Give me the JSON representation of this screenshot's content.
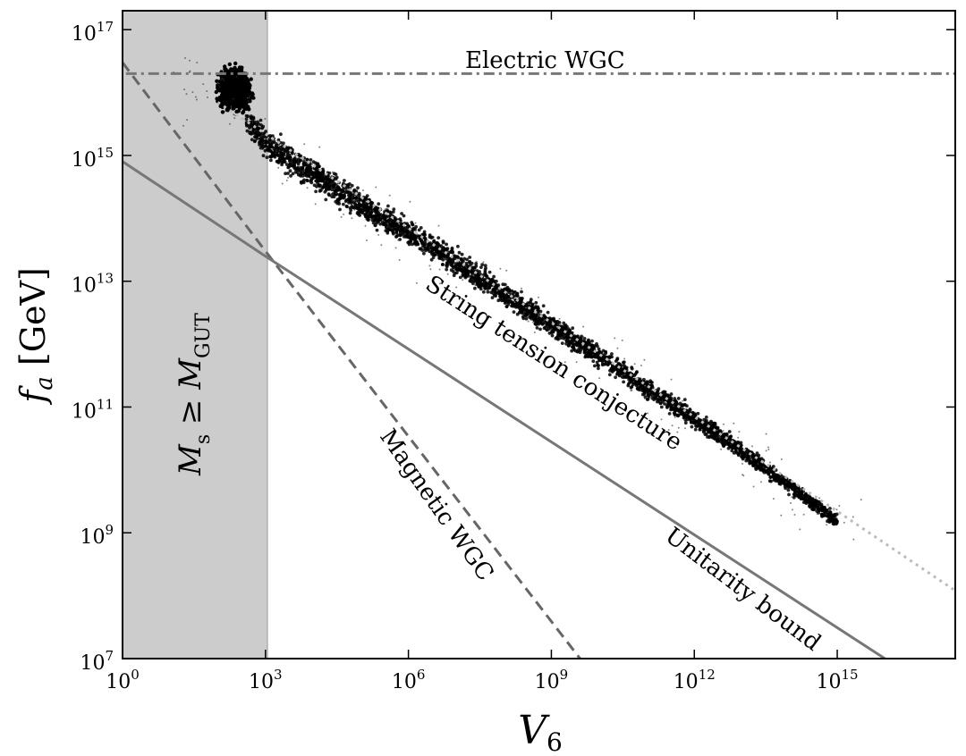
{
  "chart_data": {
    "type": "scatter",
    "title": "",
    "xlabel": {
      "main": "V",
      "sub": "6"
    },
    "ylabel": {
      "main": "f",
      "sub": "a",
      "unit": "[GeV]"
    },
    "x_scale": "log",
    "y_scale": "log",
    "xlim": [
      1,
      3e+17
    ],
    "ylim": [
      10000000.0,
      2e+17
    ],
    "x_ticks": [
      {
        "base": "10",
        "exp": "0",
        "value": 1
      },
      {
        "base": "10",
        "exp": "3",
        "value": 1000
      },
      {
        "base": "10",
        "exp": "6",
        "value": 1000000
      },
      {
        "base": "10",
        "exp": "9",
        "value": 1000000000
      },
      {
        "base": "10",
        "exp": "12",
        "value": 1000000000000
      },
      {
        "base": "10",
        "exp": "15",
        "value": 1000000000000000
      }
    ],
    "y_ticks": [
      {
        "base": "10",
        "exp": "7",
        "value": 10000000
      },
      {
        "base": "10",
        "exp": "9",
        "value": 1000000000
      },
      {
        "base": "10",
        "exp": "11",
        "value": 100000000000
      },
      {
        "base": "10",
        "exp": "13",
        "value": 10000000000000
      },
      {
        "base": "10",
        "exp": "15",
        "value": 1000000000000000
      },
      {
        "base": "10",
        "exp": "17",
        "value": 100000000000000000
      }
    ],
    "shaded_region": {
      "x_range": [
        1,
        1100
      ],
      "label": {
        "M": "M",
        "Msub": "s",
        "op": "≥",
        "G": "M",
        "Gsub": "GUT"
      },
      "color": "#cccccc"
    },
    "lines": [
      {
        "name": "Electric WGC",
        "style": "dashdot",
        "color": "#777777",
        "points": [
          [
            0.4,
            2e+16
          ],
          [
            3e+17,
            2e+16
          ]
        ]
      },
      {
        "name": "Magnetic WGC",
        "style": "dashed",
        "color": "#666666",
        "points": [
          [
            1,
            3e+16
          ],
          [
            1000,
            30000000000000.0
          ],
          [
            4000000000.0,
            10000000.0
          ]
        ]
      },
      {
        "name": "Unitarity bound",
        "style": "solid",
        "color": "#777777",
        "points": [
          [
            1,
            800000000000000.0
          ],
          [
            1000,
            25000000000000.0
          ],
          [
            1e+16,
            10000000.0
          ]
        ]
      },
      {
        "name": "String tension conjecture",
        "style": "dotted",
        "color": "#bbbbbb",
        "points": [
          [
            100,
            7000000000000000.0
          ],
          [
            1000,
            2200000000000000.0
          ],
          [
            1000000.0,
            70000000000000.0
          ],
          [
            1000000000.0,
            2200000000000.0
          ],
          [
            1000000000000.0,
            70000000000.0
          ],
          [
            1000000000000000.0,
            2200000000.0
          ],
          [
            3e+17,
            120000000.0
          ]
        ]
      }
    ],
    "scatter_band": {
      "color": "#000000",
      "ridge": [
        [
          10,
          9000000000000000.0
        ],
        [
          30,
          1.4e+16
        ],
        [
          100,
          1e+16
        ],
        [
          300,
          6000000000000000.0
        ],
        [
          1000,
          1500000000000000.0
        ],
        [
          10000.0,
          500000000000000.0
        ],
        [
          100000.0,
          160000000000000.0
        ],
        [
          1000000.0,
          60000000000000.0
        ],
        [
          10000000.0,
          20000000000000.0
        ],
        [
          100000000.0,
          6500000000000.0
        ],
        [
          1000000000.0,
          2000000000000.0
        ],
        [
          10000000000.0,
          650000000000.0
        ],
        [
          100000000000.0,
          200000000000.0
        ],
        [
          1000000000000.0,
          65000000000.0
        ],
        [
          10000000000000.0,
          20000000000.0
        ],
        [
          100000000000000.0,
          5500000000.0
        ],
        [
          1000000000000000.0,
          1500000000.0
        ]
      ]
    }
  }
}
